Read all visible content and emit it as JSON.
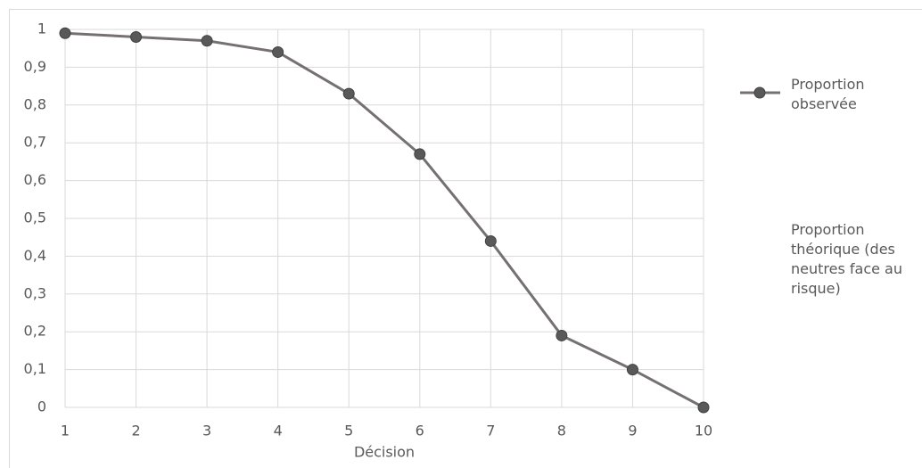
{
  "chart_data": {
    "type": "line",
    "x_label": "Décision",
    "categories": [
      "1",
      "2",
      "3",
      "4",
      "5",
      "6",
      "7",
      "8",
      "9",
      "10"
    ],
    "series": [
      {
        "name": "Proportion observée",
        "color": "#767171",
        "marker_color": "#595959",
        "values": [
          0.99,
          0.98,
          0.97,
          0.94,
          0.83,
          0.67,
          0.44,
          0.19,
          0.1,
          0
        ]
      },
      {
        "name": "Proportion théorique (des neutres face au risque)",
        "color": "#ed7d31",
        "values": [
          null,
          null,
          null,
          null,
          null,
          null,
          null,
          null,
          null,
          null
        ]
      }
    ],
    "ylim": [
      0,
      1
    ],
    "yticks": [
      0,
      {
        "value": 0.1,
        "label": "0,1"
      },
      {
        "value": 0.2,
        "label": "0,2"
      },
      {
        "value": 0.3,
        "label": "0,3"
      },
      {
        "value": 0.4,
        "label": "0,4"
      },
      {
        "value": 0.5,
        "label": "0,5"
      },
      {
        "value": 0.6,
        "label": "0,6"
      },
      {
        "value": 0.7,
        "label": "0,7"
      },
      {
        "value": 0.8,
        "label": "0,8"
      },
      {
        "value": 0.9,
        "label": "0,9"
      },
      1
    ],
    "grid": true,
    "legend": "right"
  }
}
